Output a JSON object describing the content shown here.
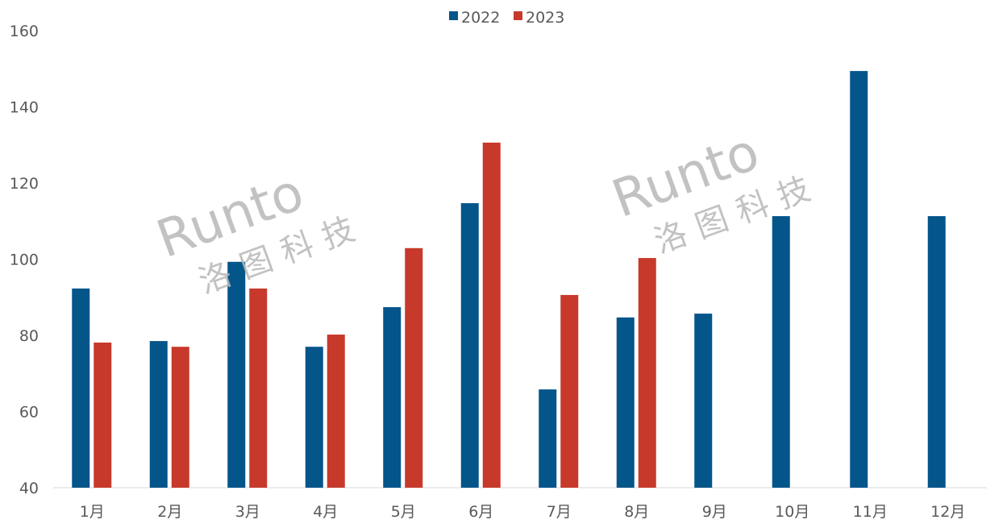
{
  "chart_data": {
    "type": "bar",
    "title": "",
    "xlabel": "",
    "ylabel": "",
    "ylim": [
      40,
      160
    ],
    "yticks": [
      40,
      60,
      80,
      100,
      120,
      140,
      160
    ],
    "grid": false,
    "legend": "top-center",
    "categories": [
      "1月",
      "2月",
      "3月",
      "4月",
      "5月",
      "6月",
      "7月",
      "8月",
      "9月",
      "10月",
      "11月",
      "12月"
    ],
    "series": [
      {
        "name": "2022",
        "color": "#03558A",
        "values": [
          92.3,
          78.5,
          99.3,
          77.0,
          87.4,
          114.7,
          65.8,
          84.7,
          85.7,
          111.3,
          149.4,
          111.3
        ]
      },
      {
        "name": "2023",
        "color": "#C7392B",
        "values": [
          78.1,
          77.0,
          92.3,
          80.2,
          102.9,
          130.6,
          90.6,
          100.3,
          null,
          null,
          null,
          null
        ]
      }
    ]
  },
  "watermark": {
    "brand": "Runto",
    "chinese": "洛图科技"
  }
}
